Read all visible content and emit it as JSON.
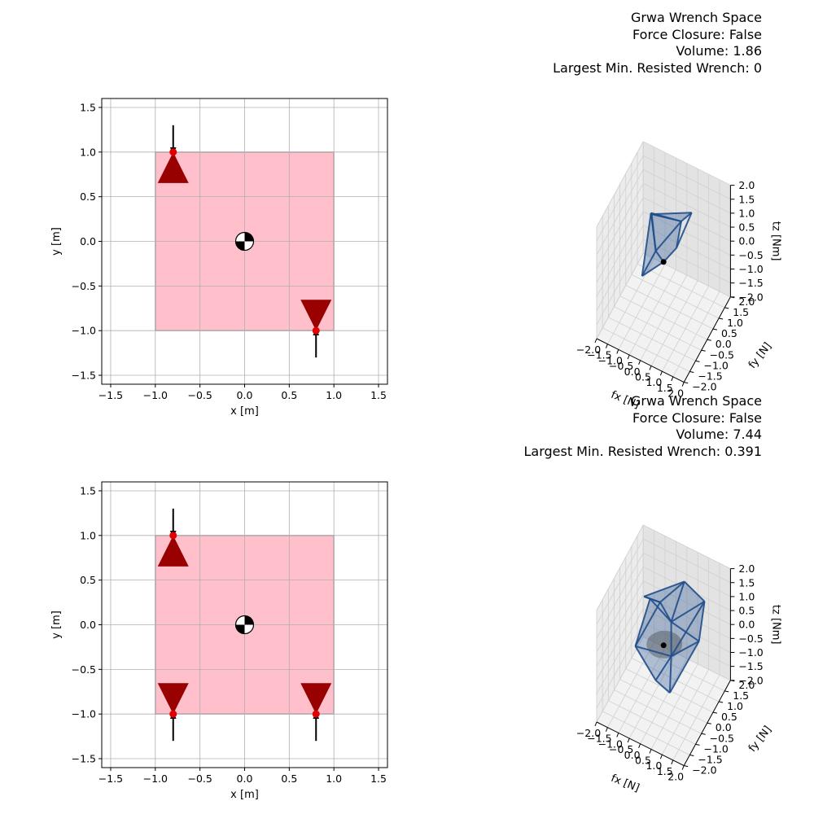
{
  "chart_data": [
    {
      "type": "scatter",
      "panel": "grasp-1",
      "xlabel": "x [m]",
      "ylabel": "y [m]",
      "xlim": [
        -1.6,
        1.6
      ],
      "ylim": [
        -1.6,
        1.6
      ],
      "xticks": [
        "−1.5",
        "−1.0",
        "−0.5",
        "0.0",
        "0.5",
        "1.0",
        "1.5"
      ],
      "yticks": [
        "−1.5",
        "−1.0",
        "−0.5",
        "0.0",
        "0.5",
        "1.0",
        "1.5"
      ],
      "grid": true,
      "object": {
        "shape": "square",
        "x": [
          -1.0,
          1.0
        ],
        "y": [
          -1.0,
          1.0
        ],
        "color": "#ffc0cb"
      },
      "center_of_mass": [
        0.0,
        0.0
      ],
      "contacts": [
        {
          "x": -0.8,
          "y": 1.0,
          "normal": "down"
        },
        {
          "x": 0.8,
          "y": -1.0,
          "normal": "up"
        }
      ]
    },
    {
      "type": "scatter",
      "panel": "wrench-space-1",
      "title": [
        "Grwa Wrench Space",
        "Force Closure: False",
        "Volume: 1.86",
        "Largest Min. Resisted Wrench: 0"
      ],
      "xlabel": "fx [N]",
      "ylabel": "fy [N]",
      "zlabel": "tz [Nm]",
      "xlim": [
        -2.0,
        2.0
      ],
      "ylim": [
        -2.0,
        2.0
      ],
      "zlim": [
        -2.0,
        2.0
      ],
      "ticks": [
        "−2.0",
        "−1.5",
        "−1.0",
        "−0.5",
        "0.0",
        "0.5",
        "1.0",
        "1.5",
        "2.0"
      ],
      "hull_color": "#1f4e8c",
      "origin": [
        0.0,
        0.0,
        0.0
      ],
      "inscribed_sphere": false
    },
    {
      "type": "scatter",
      "panel": "grasp-2",
      "xlabel": "x [m]",
      "ylabel": "y [m]",
      "xlim": [
        -1.6,
        1.6
      ],
      "ylim": [
        -1.6,
        1.6
      ],
      "xticks": [
        "−1.5",
        "−1.0",
        "−0.5",
        "0.0",
        "0.5",
        "1.0",
        "1.5"
      ],
      "yticks": [
        "−1.5",
        "−1.0",
        "−0.5",
        "0.0",
        "0.5",
        "1.0",
        "1.5"
      ],
      "grid": true,
      "object": {
        "shape": "square",
        "x": [
          -1.0,
          1.0
        ],
        "y": [
          -1.0,
          1.0
        ],
        "color": "#ffc0cb"
      },
      "center_of_mass": [
        0.0,
        0.0
      ],
      "contacts": [
        {
          "x": -0.8,
          "y": 1.0,
          "normal": "down"
        },
        {
          "x": -0.8,
          "y": -1.0,
          "normal": "up"
        },
        {
          "x": 0.8,
          "y": -1.0,
          "normal": "up"
        }
      ]
    },
    {
      "type": "scatter",
      "panel": "wrench-space-2",
      "title": [
        "Grwa Wrench Space",
        "Force Closure: False",
        "Volume: 7.44",
        "Largest Min. Resisted Wrench: 0.391"
      ],
      "xlabel": "fx [N]",
      "ylabel": "fy [N]",
      "zlabel": "tz [Nm]",
      "xlim": [
        -2.0,
        2.0
      ],
      "ylim": [
        -2.0,
        2.0
      ],
      "zlim": [
        -2.0,
        2.0
      ],
      "ticks": [
        "−2.0",
        "−1.5",
        "−1.0",
        "−0.5",
        "0.0",
        "0.5",
        "1.0",
        "1.5",
        "2.0"
      ],
      "hull_color": "#1f4e8c",
      "origin": [
        0.0,
        0.0,
        0.0
      ],
      "inscribed_sphere": true
    }
  ]
}
